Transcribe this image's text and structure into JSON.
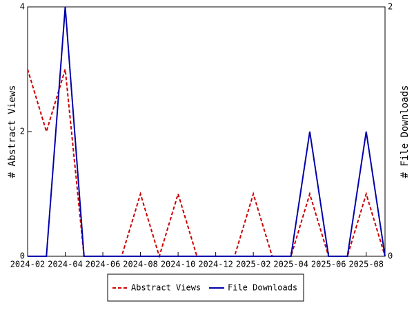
{
  "chart_data": {
    "type": "line",
    "categories": [
      "2024-02",
      null,
      "2024-04",
      null,
      "2024-06",
      null,
      "2024-08",
      null,
      "2024-10",
      null,
      "2024-12",
      null,
      "2025-02",
      null,
      "2025-04",
      null,
      "2025-06",
      null,
      "2025-08",
      null
    ],
    "y_label": "# Abstract Views",
    "y2_label": "# File Downloads",
    "ylim": [
      0,
      4
    ],
    "yticks": [
      0,
      2,
      4
    ],
    "y2lim": [
      0,
      2
    ],
    "y2ticks": [
      0,
      2
    ],
    "legend": "bottom",
    "series": [
      {
        "name": "Abstract Views",
        "color": "#cc0000",
        "linestyle": "dashed",
        "values": [
          3,
          2,
          3,
          0,
          0,
          0,
          1,
          0,
          1,
          0,
          0,
          0,
          1,
          0,
          0,
          1,
          0,
          0,
          1,
          0
        ]
      },
      {
        "name": "File Downloads",
        "color": "#0000aa",
        "linestyle": "solid",
        "axis": "y2",
        "values": [
          0,
          0,
          2,
          0,
          0,
          0,
          0,
          0,
          0,
          0,
          0,
          0,
          0,
          0,
          0,
          1,
          0,
          0,
          1,
          0
        ]
      }
    ]
  }
}
